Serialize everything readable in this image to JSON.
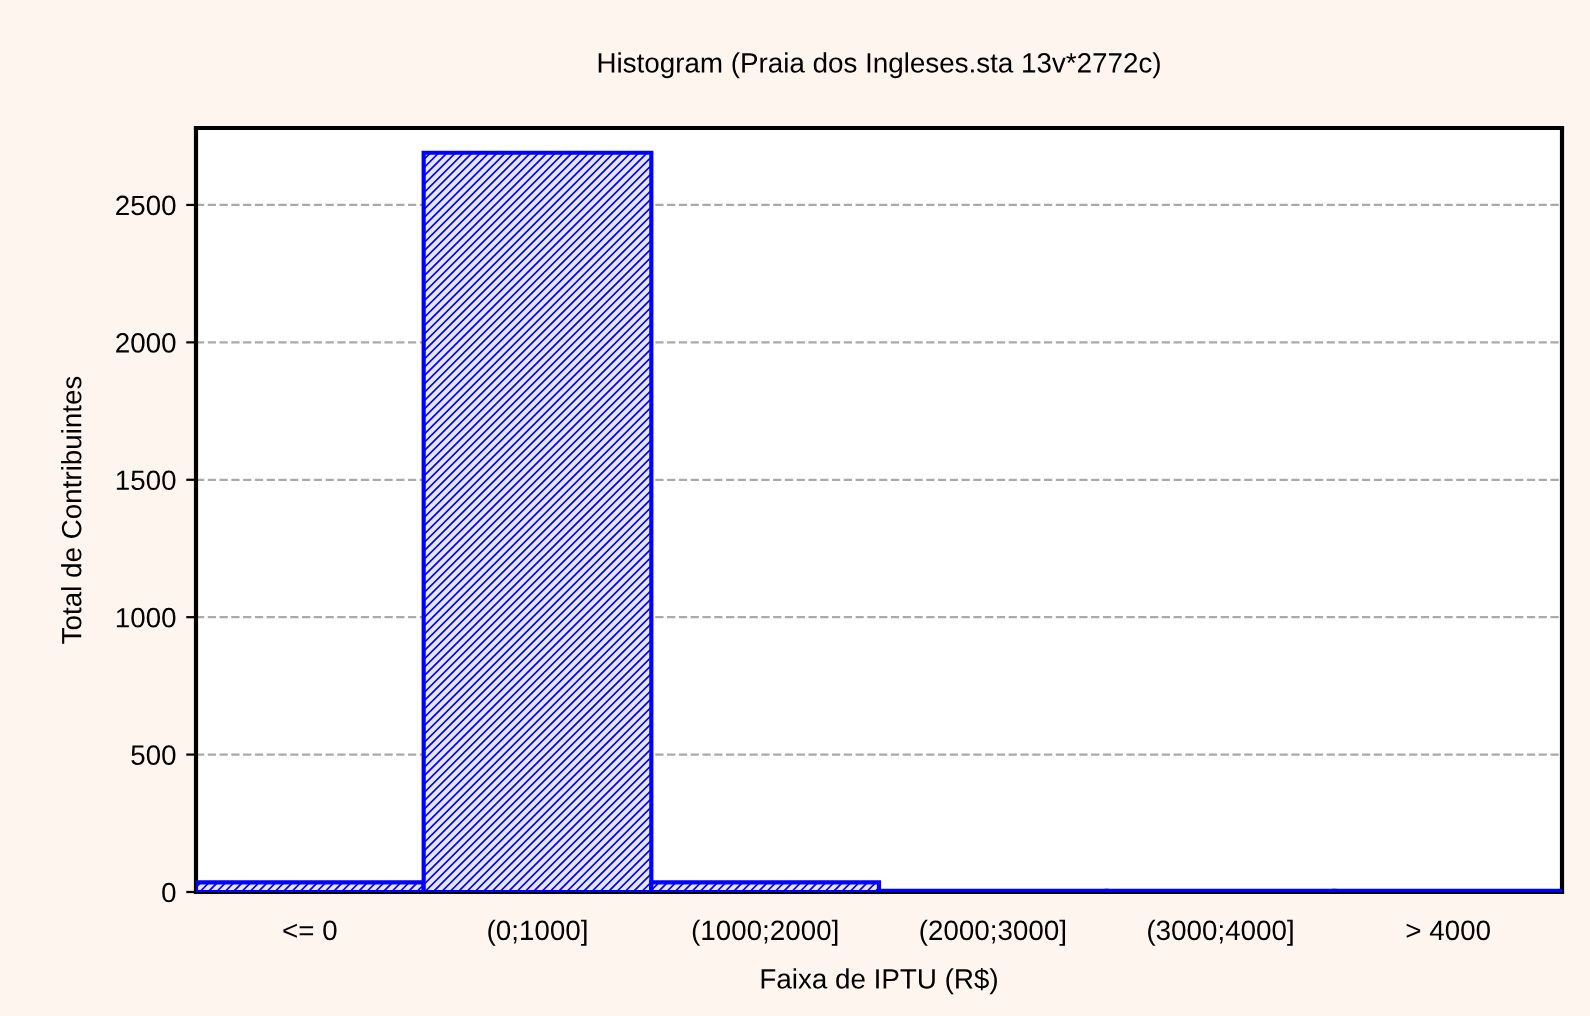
{
  "chart_data": {
    "type": "histogram",
    "title": "Histogram (Praia dos Ingleses.sta 13v*2772c)",
    "xlabel": "Faixa de IPTU (R$)",
    "ylabel": "Total de Contribuintes",
    "categories": [
      "<= 0",
      "(0;1000]",
      "(1000;2000]",
      "(2000;3000]",
      "(3000;4000]",
      "> 4000"
    ],
    "values": [
      35,
      2690,
      35,
      4,
      4,
      4
    ],
    "color": "#0000ff",
    "ylim": [
      0,
      2780
    ],
    "yticks": [
      0,
      500,
      1000,
      1500,
      2000,
      2500
    ],
    "grid": "y",
    "legend": false
  }
}
